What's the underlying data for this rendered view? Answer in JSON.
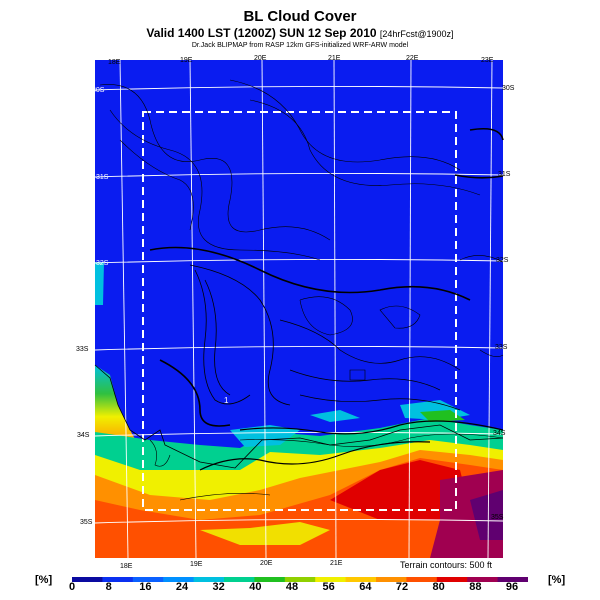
{
  "header": {
    "title": "BL Cloud Cover",
    "valid_line": "Valid 1400 LST (1200Z) SUN 12 Sep 2010",
    "forecast_tag": "[24hrFcst@1900z]",
    "credit": "Dr.Jack BLIPMAP from RASP 12km GFS-initialized WRF-ARW model"
  },
  "map": {
    "lon_labels_top": [
      "18E",
      "19E",
      "20E",
      "21E",
      "22E",
      "23E"
    ],
    "lon_labels_bottom": [
      "18E",
      "19E",
      "20E",
      "21E"
    ],
    "lat_labels_left": [
      "30S",
      "31S",
      "32S",
      "33S",
      "34S",
      "35S"
    ],
    "lat_labels_right": [
      "30S",
      "31S",
      "32S",
      "33S",
      "34S",
      "35S"
    ],
    "point_label": "1",
    "terrain_note": "Terrain contours: 500 ft"
  },
  "legend": {
    "unit_left": "[%]",
    "unit_right": "[%]",
    "ticks": [
      "0",
      "8",
      "16",
      "24",
      "32",
      "40",
      "48",
      "56",
      "64",
      "72",
      "80",
      "88",
      "96"
    ],
    "colors": [
      "#0a0aa0",
      "#0a30f0",
      "#0a60ff",
      "#0090ff",
      "#00c0e0",
      "#00d090",
      "#20c020",
      "#90d000",
      "#f0f000",
      "#ffc800",
      "#ff9000",
      "#ff5000",
      "#e00000",
      "#a00050",
      "#600070"
    ]
  }
}
